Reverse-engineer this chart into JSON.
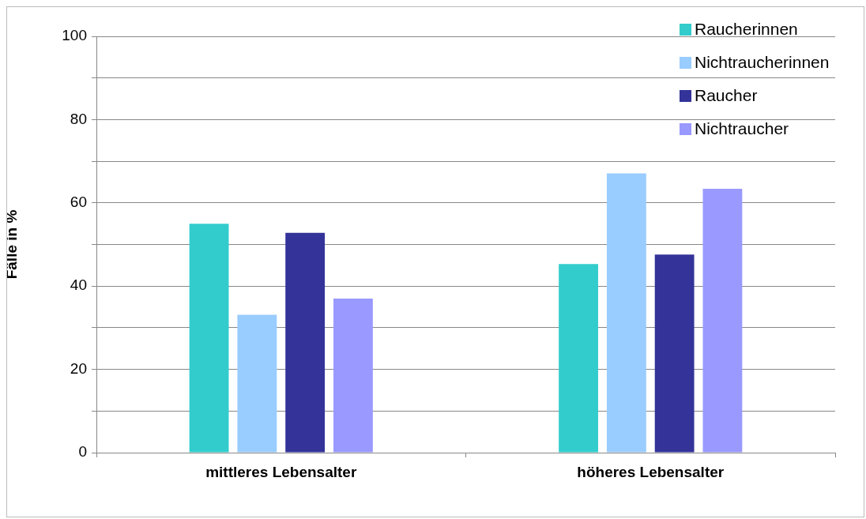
{
  "chart_data": {
    "type": "bar",
    "ylabel": "Fälle in %",
    "categories": [
      "mittleres Lebensalter",
      "höheres Lebensalter"
    ],
    "series": [
      {
        "name": "Raucherinnen",
        "color": "#33cccc",
        "values": [
          55,
          45.3
        ]
      },
      {
        "name": "Nichtraucherinnen",
        "color": "#99ccff",
        "values": [
          33.1,
          67.1
        ]
      },
      {
        "name": "Raucher",
        "color": "#333399",
        "values": [
          52.8,
          47.6
        ]
      },
      {
        "name": "Nichtraucher",
        "color": "#9999ff",
        "values": [
          37,
          63.4
        ]
      }
    ],
    "ylim": [
      0,
      100
    ],
    "yticks": [
      0,
      {
        "value": 10,
        "label": null
      },
      20,
      {
        "value": 30,
        "label": null
      },
      40,
      {
        "value": 50,
        "label": null
      },
      60,
      {
        "value": 70,
        "label": null
      },
      80,
      {
        "value": 90,
        "label": null
      },
      100
    ],
    "grid": "y",
    "legend": "top right"
  }
}
